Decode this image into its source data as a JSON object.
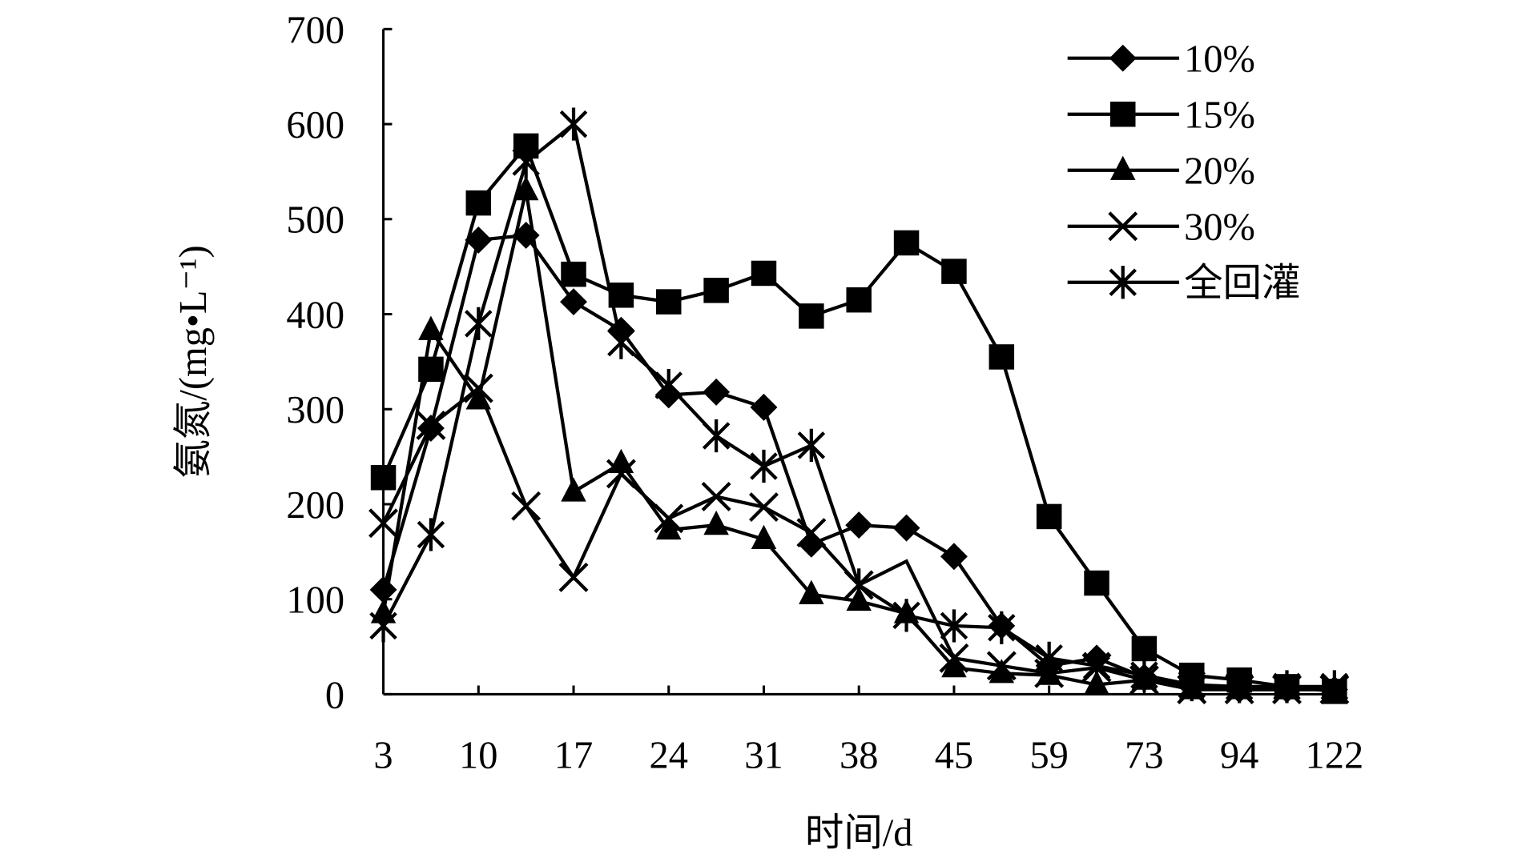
{
  "chart_data": {
    "type": "line",
    "title": "",
    "xlabel": "时间/d",
    "ylabel": "氨氮/(mg•L⁻¹)",
    "ylim": [
      0,
      700
    ],
    "yticks": [
      "0",
      "100",
      "200",
      "300",
      "400",
      "500",
      "600",
      "700"
    ],
    "x_tick_labels": [
      "3",
      "10",
      "17",
      "24",
      "31",
      "38",
      "45",
      "59",
      "73",
      "94",
      "122"
    ],
    "categories_count": 21,
    "legend_position": "top-right",
    "series": [
      {
        "name": "10%",
        "marker": "diamond",
        "values": [
          110,
          280,
          478,
          483,
          413,
          383,
          315,
          318,
          302,
          158,
          178,
          175,
          145,
          72,
          30,
          38,
          18,
          8,
          5,
          5,
          5
        ]
      },
      {
        "name": "15%",
        "marker": "square",
        "values": [
          228,
          342,
          517,
          577,
          442,
          420,
          413,
          425,
          443,
          398,
          415,
          475,
          445,
          355,
          187,
          117,
          48,
          20,
          15,
          8,
          3
        ]
      },
      {
        "name": "20%",
        "marker": "triangle",
        "values": [
          85,
          383,
          310,
          530,
          213,
          243,
          173,
          178,
          163,
          105,
          98,
          85,
          28,
          22,
          20,
          10,
          15,
          5,
          5,
          5,
          5
        ]
      },
      {
        "name": "30%",
        "marker": "x",
        "values": [
          180,
          283,
          322,
          198,
          123,
          232,
          185,
          208,
          197,
          170,
          115,
          140,
          38,
          30,
          22,
          28,
          15,
          5,
          5,
          5,
          5
        ]
      },
      {
        "name": "全回灌",
        "marker": "asterisk",
        "values": [
          72,
          168,
          390,
          560,
          600,
          370,
          325,
          272,
          240,
          262,
          115,
          83,
          72,
          70,
          38,
          30,
          20,
          10,
          8,
          8,
          8
        ]
      }
    ]
  }
}
